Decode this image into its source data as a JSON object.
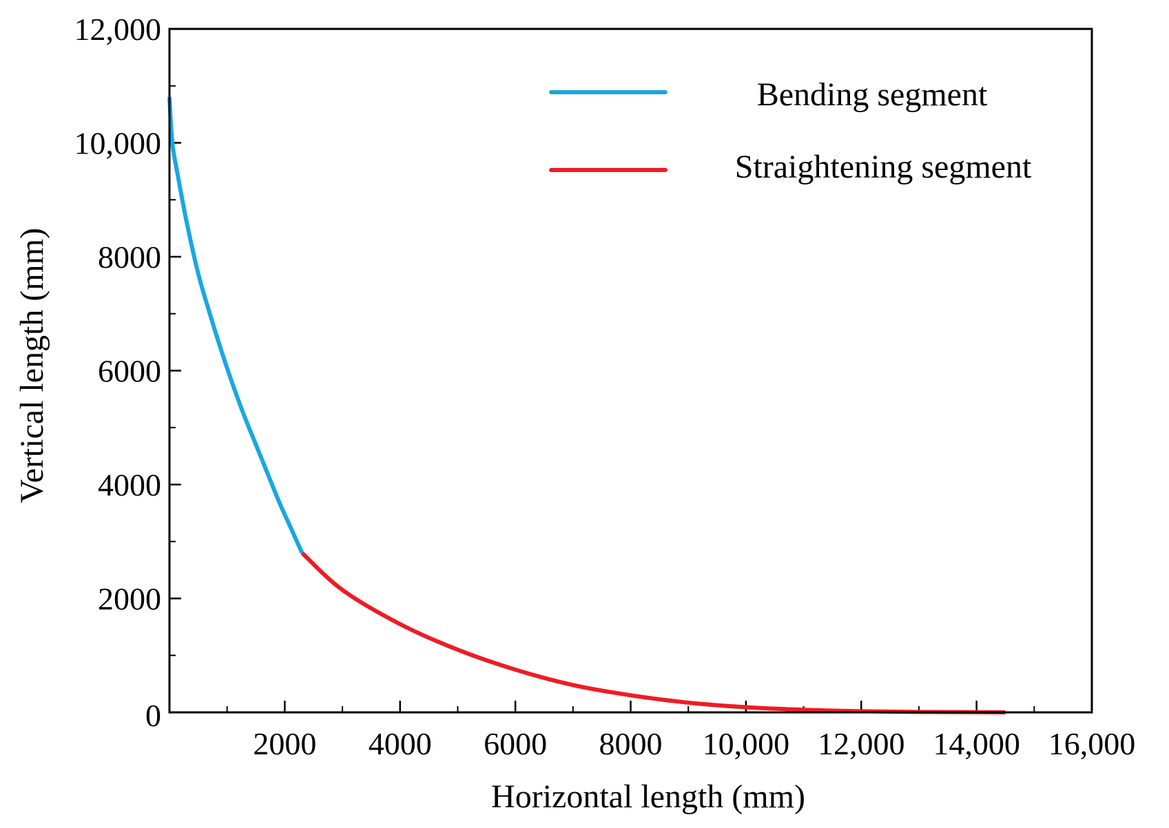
{
  "chart_data": {
    "type": "line",
    "title": "",
    "xlabel": "Horizontal length (mm)",
    "ylabel": "Vertical length (mm)",
    "xlim": [
      0,
      16000
    ],
    "ylim": [
      0,
      12000
    ],
    "x_major_ticks": [
      0,
      2000,
      4000,
      6000,
      8000,
      10000,
      12000,
      14000,
      16000
    ],
    "x_tick_labels": [
      "",
      "2000",
      "4000",
      "6000",
      "8000",
      "10,000",
      "12,000",
      "14,000",
      "16,000"
    ],
    "y_major_ticks": [
      0,
      2000,
      4000,
      6000,
      8000,
      10000,
      12000
    ],
    "y_tick_labels": [
      "0",
      "2000",
      "4000",
      "6000",
      "8000",
      "10,000",
      "12,000"
    ],
    "minor_tick_step": 1000,
    "grid": false,
    "legend_position": "top-right",
    "series": [
      {
        "name": "Bending segment",
        "color": "#1aa7e2",
        "points": [
          [
            0,
            10800
          ],
          [
            50,
            10000
          ],
          [
            150,
            9400
          ],
          [
            300,
            8600
          ],
          [
            500,
            7700
          ],
          [
            700,
            7000
          ],
          [
            900,
            6350
          ],
          [
            1100,
            5750
          ],
          [
            1300,
            5200
          ],
          [
            1500,
            4700
          ],
          [
            1700,
            4200
          ],
          [
            1900,
            3700
          ],
          [
            2100,
            3250
          ],
          [
            2300,
            2800
          ]
        ]
      },
      {
        "name": "Straightening segment",
        "color": "#ee1c25",
        "points": [
          [
            2300,
            2800
          ],
          [
            3000,
            2150
          ],
          [
            4000,
            1550
          ],
          [
            5000,
            1100
          ],
          [
            6000,
            750
          ],
          [
            7000,
            480
          ],
          [
            8000,
            300
          ],
          [
            9000,
            170
          ],
          [
            10000,
            90
          ],
          [
            11000,
            45
          ],
          [
            12000,
            20
          ],
          [
            13000,
            8
          ],
          [
            14000,
            3
          ],
          [
            14500,
            0
          ]
        ]
      }
    ]
  }
}
